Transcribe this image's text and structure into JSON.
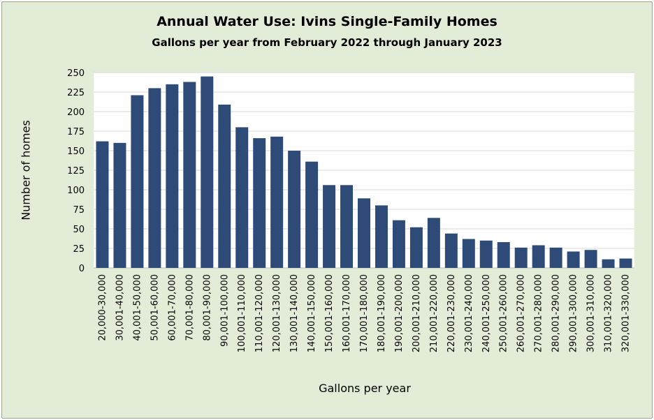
{
  "chart_data": {
    "type": "bar",
    "title": "Annual Water Use: Ivins Single-Family Homes",
    "subtitle": "Gallons  per year from February 2022 through January 2023",
    "xlabel": "Gallons per year",
    "ylabel": "Number  of homes",
    "ylim": [
      0,
      250
    ],
    "yticks": [
      0,
      25,
      50,
      75,
      100,
      125,
      150,
      175,
      200,
      225,
      250
    ],
    "grid": true,
    "legend": "none",
    "categories": [
      "20,000-30,000",
      "30,001-40,000",
      "40,001-50,000",
      "50,001-60,000",
      "60,001-70,000",
      "70,001-80,000",
      "80,001-90,000",
      "90,001-100,000",
      "100,001-110,000",
      "110,001-120,000",
      "120,001-130,000",
      "130,001-140,000",
      "140,001-150,000",
      "150,001-160,000",
      "160,001-170,000",
      "170,001-180,000",
      "180,001-190,000",
      "190,001-200,000",
      "200,001-210,000",
      "210,001-220,000",
      "220,001-230,000",
      "230,001-240,000",
      "240,001-250,000",
      "250,001-260,000",
      "260,001-270,000",
      "270,001-280,000",
      "280,001-290,000",
      "290,001-300,000",
      "300,001-310,000",
      "310,001-320,000",
      "320,001-330,000"
    ],
    "values": [
      162,
      160,
      221,
      230,
      235,
      238,
      245,
      209,
      180,
      166,
      168,
      150,
      136,
      106,
      106,
      89,
      80,
      61,
      52,
      64,
      44,
      37,
      35,
      33,
      26,
      29,
      26,
      21,
      23,
      11,
      12
    ],
    "colors": {
      "bar": "#2e4a77",
      "background": "#e2ecd6",
      "plot": "#ffffff",
      "grid": "#d9d9d9"
    }
  }
}
